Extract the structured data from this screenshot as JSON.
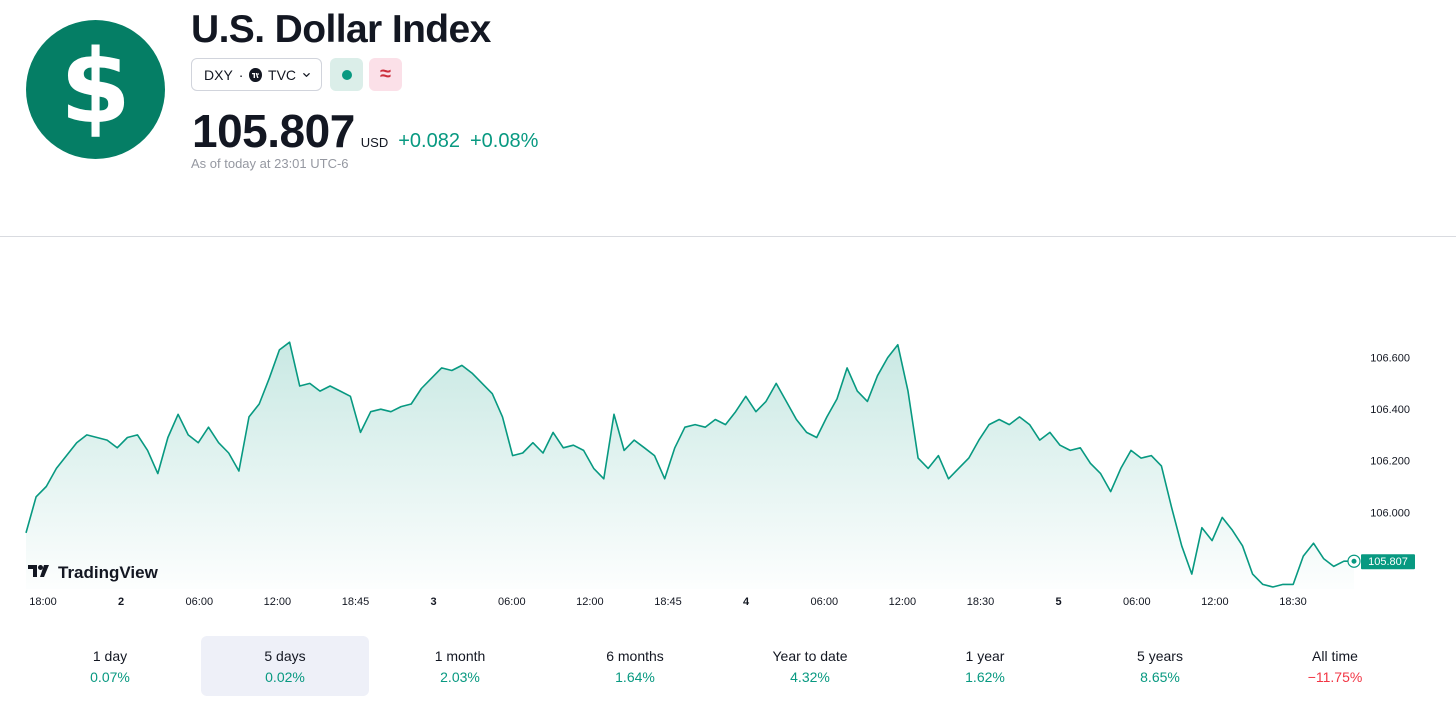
{
  "header": {
    "logo_icon": "dollar-sign-icon",
    "logo_glyph": "$",
    "logo_color": "#057e65",
    "title": "U.S. Dollar Index",
    "symbol": "DXY",
    "separator": "·",
    "exchange": "TVC",
    "exchange_icon": "tradingview-icon",
    "status_icon": "market-status-dot-icon",
    "status_color": "#089981",
    "delayed_icon": "approx-icon",
    "delayed_glyph": "≈",
    "delayed_color": "#cc2f3c",
    "price": "105.807",
    "currency": "USD",
    "change": "+0.082",
    "change_pct": "+0.08%",
    "change_color": "#089981",
    "as_of": "As of today at 23:01 UTC-6"
  },
  "chart_data": {
    "type": "area",
    "series": [
      {
        "values": [
          105.92,
          106.06,
          106.1,
          106.17,
          106.22,
          106.27,
          106.3,
          106.29,
          106.28,
          106.25,
          106.29,
          106.3,
          106.24,
          106.15,
          106.29,
          106.38,
          106.3,
          106.27,
          106.33,
          106.27,
          106.23,
          106.16,
          106.37,
          106.42,
          106.52,
          106.63,
          106.66,
          106.49,
          106.5,
          106.47,
          106.49,
          106.47,
          106.45,
          106.31,
          106.39,
          106.4,
          106.39,
          106.41,
          106.42,
          106.48,
          106.52,
          106.56,
          106.55,
          106.57,
          106.54,
          106.5,
          106.46,
          106.37,
          106.22,
          106.23,
          106.27,
          106.23,
          106.31,
          106.25,
          106.26,
          106.24,
          106.17,
          106.13,
          106.38,
          106.24,
          106.28,
          106.25,
          106.22,
          106.13,
          106.25,
          106.33,
          106.34,
          106.33,
          106.36,
          106.34,
          106.39,
          106.45,
          106.39,
          106.43,
          106.5,
          106.43,
          106.36,
          106.31,
          106.29,
          106.37,
          106.44,
          106.56,
          106.47,
          106.43,
          106.53,
          106.6,
          106.65,
          106.47,
          106.21,
          106.17,
          106.22,
          106.13,
          106.17,
          106.21,
          106.28,
          106.34,
          106.36,
          106.34,
          106.37,
          106.34,
          106.28,
          106.31,
          106.26,
          106.24,
          106.25,
          106.19,
          106.15,
          106.08,
          106.17,
          106.24,
          106.21,
          106.22,
          106.18,
          106.02,
          105.87,
          105.76,
          105.94,
          105.89,
          105.98,
          105.93,
          105.87,
          105.76,
          105.72,
          105.71,
          105.72,
          105.72,
          105.83,
          105.88,
          105.82,
          105.79,
          105.81,
          105.81
        ]
      }
    ],
    "x_tick_labels": [
      "18:00",
      "2",
      "06:00",
      "12:00",
      "18:45",
      "3",
      "06:00",
      "12:00",
      "18:45",
      "4",
      "06:00",
      "12:00",
      "18:30",
      "5",
      "06:00",
      "12:00",
      "18:30"
    ],
    "y_tick_labels": [
      "106.600",
      "106.400",
      "106.200",
      "106.000"
    ],
    "ylim": [
      105.71,
      106.68
    ],
    "last_value_label": "105.807",
    "line_color": "#089981",
    "grid": false,
    "watermark": "TradingView"
  },
  "periods": [
    {
      "label": "1 day",
      "value": "0.07%",
      "color": "#089981"
    },
    {
      "label": "5 days",
      "value": "0.02%",
      "color": "#089981",
      "selected": true
    },
    {
      "label": "1 month",
      "value": "2.03%",
      "color": "#089981"
    },
    {
      "label": "6 months",
      "value": "1.64%",
      "color": "#089981"
    },
    {
      "label": "Year to date",
      "value": "4.32%",
      "color": "#089981"
    },
    {
      "label": "1 year",
      "value": "1.62%",
      "color": "#089981"
    },
    {
      "label": "5 years",
      "value": "8.65%",
      "color": "#089981"
    },
    {
      "label": "All time",
      "value": "−11.75%",
      "color": "#f23645"
    }
  ]
}
